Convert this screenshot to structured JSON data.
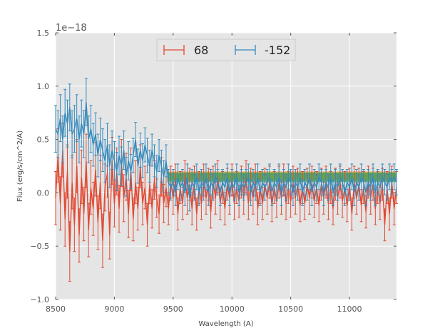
{
  "chart_data": {
    "type": "line",
    "title": "",
    "xlabel": "Wavelength (A)",
    "ylabel": "Flux (erg/s/cm^2/A)",
    "y_offset_label": "1e−18",
    "xlim": [
      8500,
      11400
    ],
    "ylim": [
      -1.0,
      1.5
    ],
    "x_ticks": [
      8500,
      9000,
      9500,
      10000,
      10500,
      11000
    ],
    "x_tick_labels": [
      "8500",
      "9000",
      "9500",
      "10000",
      "10500",
      "11000"
    ],
    "y_ticks": [
      -1.0,
      -0.5,
      0.0,
      0.5,
      1.0,
      1.5
    ],
    "y_tick_labels": [
      "−1.0",
      "−0.5",
      "0.0",
      "0.5",
      "1.0",
      "1.5"
    ],
    "grid": true,
    "legend_position": "top-center",
    "series": [
      {
        "name": "68",
        "color": "#e24a33",
        "x_start": 8500,
        "x_step": 20,
        "values": [
          -0.05,
          0.35,
          -0.1,
          0.4,
          -0.25,
          0.2,
          -0.55,
          0.1,
          -0.3,
          0.25,
          -0.4,
          0.15,
          -0.2,
          0.3,
          -0.35,
          0.05,
          -0.15,
          0.22,
          -0.28,
          0.1,
          -0.45,
          0.05,
          0.18,
          -0.4,
          0.3,
          -0.1,
          0.2,
          -0.15,
          0.28,
          -0.05,
          0.15,
          -0.2,
          0.22,
          -0.25,
          0.1,
          -0.15,
          0.25,
          -0.1,
          0.05,
          -0.3,
          0.08,
          -0.15,
          0.12,
          -0.05,
          -0.2,
          0.15,
          -0.1,
          0.05,
          -0.15,
          0.1,
          -0.05,
          0.12,
          -0.2,
          0.05,
          -0.1,
          0.15,
          -0.05,
          0.08,
          -0.15,
          0.1,
          -0.2,
          0.05,
          -0.1,
          0.12,
          -0.05,
          0.08,
          -0.18,
          0.1,
          -0.05,
          0.15,
          -0.1,
          0.05,
          -0.15,
          0.08,
          -0.05,
          0.12,
          -0.1,
          0.05,
          -0.08,
          0.1,
          -0.05,
          0.15,
          -0.1,
          0.08,
          -0.05,
          0.12,
          -0.15,
          0.05,
          -0.1,
          0.08,
          -0.05,
          0.1,
          -0.12,
          0.05,
          -0.08,
          0.1,
          -0.05,
          0.12,
          -0.1,
          0.05,
          -0.08,
          0.1,
          -0.05,
          0.08,
          -0.12,
          0.05,
          -0.1,
          0.08,
          -0.05,
          0.1,
          -0.08,
          0.05,
          -0.12,
          0.08,
          -0.05,
          0.1,
          -0.1,
          0.05,
          -0.15,
          0.08,
          -0.05,
          0.1,
          -0.08,
          0.05,
          -0.12,
          0.08,
          -0.2,
          0.1,
          -0.05,
          0.08,
          -0.12,
          0.05,
          -0.18,
          0.1,
          -0.05,
          0.08,
          -0.15,
          0.05,
          -0.1,
          0.08,
          -0.3,
          0.05,
          -0.2,
          0.1,
          -0.15,
          0.05
        ],
        "errors": [
          0.25,
          0.25,
          0.25,
          0.25,
          0.25,
          0.25,
          0.28,
          0.25,
          0.25,
          0.25,
          0.25,
          0.25,
          0.25,
          0.25,
          0.25,
          0.25,
          0.25,
          0.25,
          0.25,
          0.25,
          0.25,
          0.22,
          0.22,
          0.22,
          0.22,
          0.22,
          0.22,
          0.22,
          0.22,
          0.22,
          0.22,
          0.22,
          0.2,
          0.2,
          0.2,
          0.2,
          0.2,
          0.2,
          0.2,
          0.2,
          0.18,
          0.18,
          0.18,
          0.18,
          0.18,
          0.18,
          0.18,
          0.18,
          0.15,
          0.15,
          0.15,
          0.15,
          0.15,
          0.15,
          0.15,
          0.15,
          0.15,
          0.15,
          0.15,
          0.15,
          0.15,
          0.15,
          0.15,
          0.15,
          0.15,
          0.15,
          0.15,
          0.15,
          0.15,
          0.15,
          0.15,
          0.15,
          0.15,
          0.15,
          0.15,
          0.15,
          0.15,
          0.15,
          0.15,
          0.15,
          0.15,
          0.15,
          0.15,
          0.15,
          0.15,
          0.15,
          0.15,
          0.15,
          0.15,
          0.15,
          0.15,
          0.15,
          0.15,
          0.15,
          0.15,
          0.15,
          0.15,
          0.15,
          0.15,
          0.15,
          0.15,
          0.15,
          0.15,
          0.15,
          0.15,
          0.15,
          0.15,
          0.15,
          0.15,
          0.15,
          0.15,
          0.15,
          0.15,
          0.15,
          0.15,
          0.15,
          0.15,
          0.15,
          0.15,
          0.15,
          0.15,
          0.15,
          0.15,
          0.15,
          0.15,
          0.15,
          0.15,
          0.15,
          0.15,
          0.15,
          0.15,
          0.15,
          0.15,
          0.15,
          0.15,
          0.15,
          0.15,
          0.15,
          0.15,
          0.15,
          0.15,
          0.15,
          0.15,
          0.15,
          0.15,
          0.15
        ]
      },
      {
        "name": "-152",
        "color": "#348abd",
        "x_start": 8500,
        "x_step": 20,
        "values": [
          0.6,
          0.55,
          0.7,
          0.5,
          0.75,
          0.65,
          0.8,
          0.55,
          0.6,
          0.7,
          0.5,
          0.65,
          0.55,
          0.85,
          0.5,
          0.6,
          0.45,
          0.55,
          0.35,
          0.5,
          0.4,
          0.3,
          0.45,
          0.25,
          0.4,
          0.3,
          0.2,
          0.35,
          0.25,
          0.4,
          0.15,
          0.3,
          0.2,
          0.35,
          0.5,
          0.25,
          0.4,
          0.3,
          0.45,
          0.35,
          0.25,
          0.4,
          0.3,
          0.2,
          0.35,
          0.25,
          0.15,
          0.3,
          0.1,
          0.05,
          0.1,
          0.0,
          0.15,
          0.05,
          0.1,
          0.0,
          0.15,
          -0.05,
          0.1,
          0.05,
          0.15,
          0.0,
          0.1,
          0.05,
          0.15,
          0.0,
          0.1,
          0.05,
          0.15,
          0.1,
          0.0,
          0.1,
          0.05,
          0.15,
          0.0,
          0.1,
          0.05,
          0.15,
          0.0,
          0.1,
          0.05,
          0.1,
          0.15,
          0.0,
          0.1,
          0.05,
          0.15,
          0.0,
          0.1,
          0.05,
          0.1,
          0.15,
          0.0,
          0.1,
          0.05,
          0.15,
          0.0,
          0.1,
          0.05,
          0.15,
          0.1,
          0.0,
          0.1,
          0.05,
          0.15,
          0.0,
          0.1,
          0.05,
          0.15,
          0.0,
          0.1,
          0.05,
          0.15,
          0.1,
          0.0,
          0.1,
          0.05,
          0.15,
          0.0,
          0.1,
          0.05,
          0.15,
          0.1,
          0.0,
          0.1,
          0.05,
          0.15,
          0.0,
          0.1,
          0.05,
          0.15,
          0.1,
          0.0,
          0.1,
          0.05,
          0.15,
          0.0,
          0.1,
          0.05,
          0.15,
          0.1,
          0.05,
          0.15,
          0.1,
          0.15,
          0.1
        ],
        "errors": [
          0.22,
          0.22,
          0.22,
          0.22,
          0.22,
          0.22,
          0.22,
          0.22,
          0.22,
          0.22,
          0.22,
          0.22,
          0.22,
          0.22,
          0.22,
          0.22,
          0.2,
          0.2,
          0.2,
          0.2,
          0.2,
          0.2,
          0.2,
          0.2,
          0.18,
          0.18,
          0.18,
          0.18,
          0.18,
          0.18,
          0.18,
          0.18,
          0.16,
          0.16,
          0.16,
          0.16,
          0.16,
          0.16,
          0.16,
          0.16,
          0.15,
          0.15,
          0.15,
          0.15,
          0.15,
          0.15,
          0.15,
          0.15,
          0.12,
          0.12,
          0.12,
          0.12,
          0.12,
          0.12,
          0.12,
          0.12,
          0.12,
          0.12,
          0.12,
          0.12,
          0.12,
          0.12,
          0.12,
          0.12,
          0.12,
          0.12,
          0.12,
          0.12,
          0.12,
          0.12,
          0.12,
          0.12,
          0.12,
          0.12,
          0.12,
          0.12,
          0.12,
          0.12,
          0.12,
          0.12,
          0.12,
          0.12,
          0.12,
          0.12,
          0.12,
          0.12,
          0.12,
          0.12,
          0.12,
          0.12,
          0.12,
          0.12,
          0.12,
          0.12,
          0.12,
          0.12,
          0.12,
          0.12,
          0.12,
          0.12,
          0.12,
          0.12,
          0.12,
          0.12,
          0.12,
          0.12,
          0.12,
          0.12,
          0.12,
          0.12,
          0.12,
          0.12,
          0.12,
          0.12,
          0.12,
          0.12,
          0.12,
          0.12,
          0.12,
          0.12,
          0.12,
          0.12,
          0.12,
          0.12,
          0.12,
          0.12,
          0.12,
          0.12,
          0.12,
          0.12,
          0.12,
          0.12,
          0.12,
          0.12,
          0.12,
          0.12,
          0.12,
          0.12,
          0.12,
          0.12,
          0.12,
          0.12,
          0.12,
          0.12,
          0.12,
          0.12
        ]
      }
    ],
    "bands": [
      {
        "name": "band-orange",
        "color": "#e8a030",
        "x_range": [
          9450,
          11400
        ],
        "y_range": [
          0.12,
          0.2
        ]
      },
      {
        "name": "band-green",
        "color": "#3a9a50",
        "x_range": [
          9450,
          11400
        ],
        "y_range": [
          0.1,
          0.19
        ]
      }
    ]
  }
}
